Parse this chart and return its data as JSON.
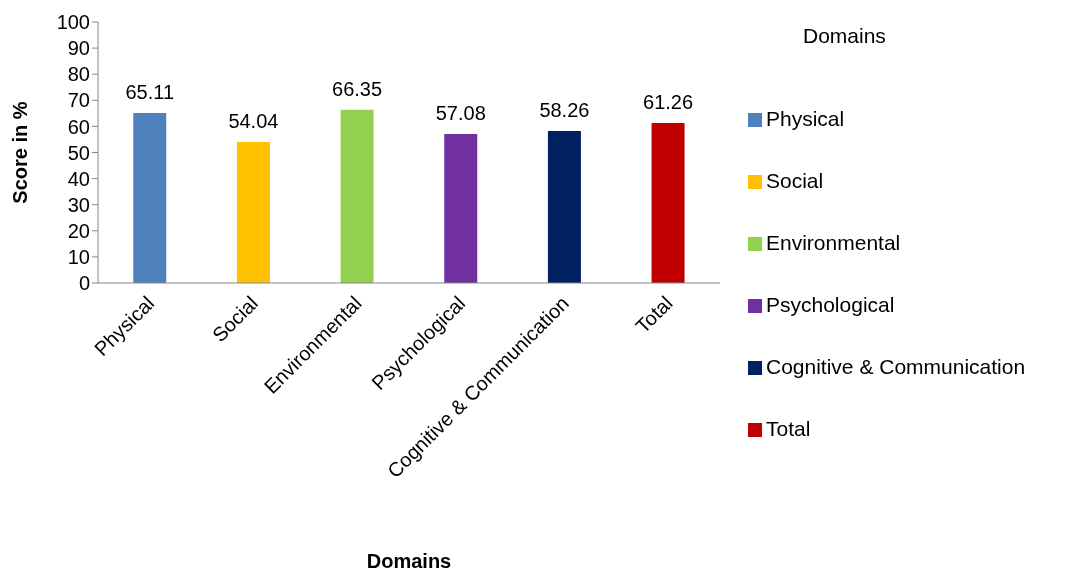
{
  "chart_data": {
    "type": "bar",
    "xlabel": "Domains",
    "ylabel": "Score in %",
    "legend_title": "Domains",
    "stacked": true,
    "categories": [
      "Physical",
      "Social",
      "Environmental",
      "Psychological",
      "Cognitive & Communication",
      "Total"
    ],
    "series": [
      {
        "name": "Physical",
        "color": "#4f81bd",
        "values": [
          65.11,
          null,
          null,
          null,
          null,
          null
        ]
      },
      {
        "name": "Social",
        "color": "#ffc000",
        "values": [
          null,
          54.04,
          null,
          null,
          null,
          null
        ]
      },
      {
        "name": "Environmental",
        "color": "#92d050",
        "values": [
          null,
          null,
          66.35,
          null,
          null,
          null
        ]
      },
      {
        "name": "Psychological",
        "color": "#7030a0",
        "values": [
          null,
          null,
          null,
          57.08,
          null,
          null
        ]
      },
      {
        "name": "Cognitive & Communication",
        "color": "#002060",
        "values": [
          null,
          null,
          null,
          null,
          58.26,
          null
        ]
      },
      {
        "name": "Total",
        "color": "#c00000",
        "values": [
          null,
          null,
          null,
          null,
          null,
          61.26
        ]
      }
    ],
    "ylim": [
      0,
      100
    ],
    "yticks": [
      0,
      10,
      20,
      30,
      40,
      50,
      60,
      70,
      80,
      90,
      100
    ],
    "data_labels": true,
    "legend": "right"
  }
}
